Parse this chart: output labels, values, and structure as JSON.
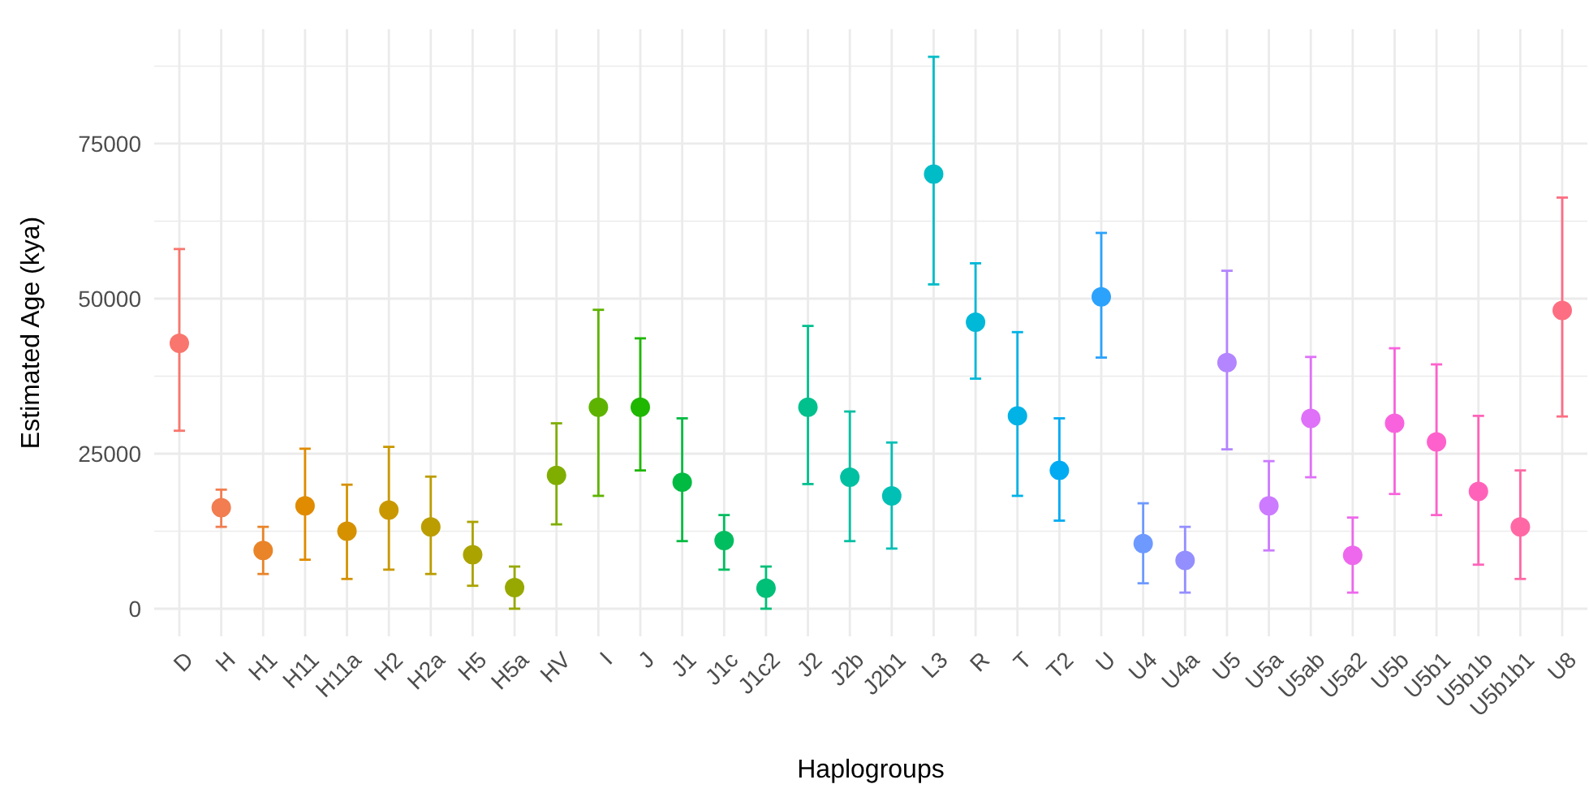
{
  "chart_data": {
    "type": "scatter",
    "xlabel": "Haplogroups",
    "ylabel": "Estimated Age (kya)",
    "categories": [
      "D",
      "H",
      "H1",
      "H11",
      "H11a",
      "H2",
      "H2a",
      "H5",
      "H5a",
      "HV",
      "I",
      "J",
      "J1",
      "J1c",
      "J1c2",
      "J2",
      "J2b",
      "J2b1",
      "L3",
      "R",
      "T",
      "T2",
      "U",
      "U4",
      "U4a",
      "U5",
      "U5a",
      "U5ab",
      "U5a2",
      "U5b",
      "U5b1",
      "U5b1b",
      "U5b1b1",
      "U8"
    ],
    "values": [
      42800,
      16300,
      9400,
      16600,
      12500,
      15900,
      13200,
      8700,
      3400,
      21500,
      32500,
      32500,
      20400,
      11000,
      3300,
      32500,
      21200,
      18200,
      70100,
      46200,
      31100,
      22300,
      50300,
      10500,
      7800,
      39700,
      16600,
      30700,
      8600,
      29900,
      26900,
      18900,
      13200,
      48100
    ],
    "errors": [
      [
        28700,
        58000
      ],
      [
        13200,
        19200
      ],
      [
        5600,
        13200
      ],
      [
        7900,
        25800
      ],
      [
        4800,
        20000
      ],
      [
        6300,
        26100
      ],
      [
        5600,
        21300
      ],
      [
        3700,
        14000
      ],
      [
        0,
        6800
      ],
      [
        13600,
        29900
      ],
      [
        18200,
        48200
      ],
      [
        22300,
        43600
      ],
      [
        10900,
        30700
      ],
      [
        6300,
        15100
      ],
      [
        0,
        6800
      ],
      [
        20100,
        45600
      ],
      [
        10900,
        31800
      ],
      [
        9700,
        26800
      ],
      [
        52300,
        89000
      ],
      [
        37100,
        55700
      ],
      [
        18200,
        44600
      ],
      [
        14200,
        30700
      ],
      [
        40500,
        60600
      ],
      [
        4100,
        17000
      ],
      [
        2600,
        13200
      ],
      [
        25700,
        54500
      ],
      [
        9400,
        23800
      ],
      [
        21200,
        40600
      ],
      [
        2600,
        14700
      ],
      [
        18500,
        42000
      ],
      [
        15100,
        39400
      ],
      [
        7100,
        31100
      ],
      [
        4800,
        22300
      ],
      [
        31000,
        66300
      ]
    ],
    "colors": [
      "#F8766D",
      "#F17D50",
      "#E98428",
      "#E08B00",
      "#D59100",
      "#C99800",
      "#BB9D00",
      "#ABA300",
      "#97A900",
      "#7FAE00",
      "#5EB300",
      "#1FB700",
      "#00BA41",
      "#00BD5F",
      "#00BF77",
      "#00C08D",
      "#00C0A2",
      "#00BFB5",
      "#00BCC7",
      "#00B8D7",
      "#00B2E6",
      "#00ABF2",
      "#2BA2FC",
      "#6E99FF",
      "#948FFF",
      "#B385FF",
      "#CC7AFF",
      "#DF70F8",
      "#ED68EC",
      "#F863DD",
      "#FE61CC",
      "#FF63B9",
      "#FF68A4",
      "#FD6E82"
    ],
    "ylim": [
      -4450,
      93450
    ],
    "yticks": [
      0,
      {
        "value": 12500,
        "label": null
      },
      25000,
      {
        "value": 37500,
        "label": null
      },
      50000,
      {
        "value": 62500,
        "label": null
      },
      75000,
      {
        "value": 87500,
        "label": null
      }
    ],
    "grid": true,
    "marker": "circle"
  }
}
